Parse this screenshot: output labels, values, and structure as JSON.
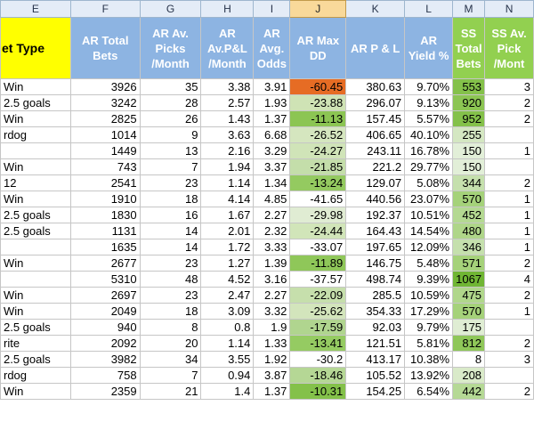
{
  "column_letters": [
    "E",
    "F",
    "G",
    "H",
    "I",
    "J",
    "K",
    "L",
    "M",
    "N"
  ],
  "headers": {
    "E": "et Type",
    "F": "AR Total Bets",
    "G": "AR Av. Picks /Month",
    "H": "AR Av.P&L /Month",
    "I": "AR Avg. Odds",
    "J": "AR Max DD",
    "K": "AR P & L",
    "L": "AR Yield %",
    "M": "SS Total Bets",
    "N": "SS Av. Pick /Mont"
  },
  "rows": [
    {
      "e": "Win",
      "f": "3926",
      "g": "35",
      "h": "3.38",
      "i": "3.91",
      "j": "-60.45",
      "k": "380.63",
      "l": "9.70%",
      "m": "553",
      "n": "3",
      "j_color": "#e66c24",
      "m_color": "#84c14a"
    },
    {
      "e": "2.5 goals",
      "f": "3242",
      "g": "28",
      "h": "2.57",
      "i": "1.93",
      "j": "-23.88",
      "k": "296.07",
      "l": "9.13%",
      "m": "920",
      "n": "2",
      "j_color": "#cfe3b5",
      "m_color": "#8cc553"
    },
    {
      "e": "Win",
      "f": "2825",
      "g": "26",
      "h": "1.43",
      "i": "1.37",
      "j": "-11.13",
      "k": "157.45",
      "l": "5.57%",
      "m": "952",
      "n": "2",
      "j_color": "#8cc553",
      "m_color": "#84c14a"
    },
    {
      "e": "rdog",
      "f": "1014",
      "g": "9",
      "h": "3.63",
      "i": "6.68",
      "j": "-26.52",
      "k": "406.65",
      "l": "40.10%",
      "m": "255",
      "n": "",
      "j_color": "#d5e6bf",
      "m_color": "#d4e7c2"
    },
    {
      "e": "",
      "f": "1449",
      "g": "13",
      "h": "2.16",
      "i": "3.29",
      "j": "-24.27",
      "k": "243.11",
      "l": "16.78%",
      "m": "150",
      "n": "1",
      "j_color": "#d0e4b8",
      "m_color": "#e2efd8"
    },
    {
      "e": "Win",
      "f": "743",
      "g": "7",
      "h": "1.94",
      "i": "3.37",
      "j": "-21.85",
      "k": "221.2",
      "l": "29.77%",
      "m": "150",
      "n": "",
      "j_color": "#c4deaa",
      "m_color": "#e2efd8"
    },
    {
      "e": "12",
      "f": "2541",
      "g": "23",
      "h": "1.14",
      "i": "1.34",
      "j": "-13.24",
      "k": "129.07",
      "l": "5.08%",
      "m": "344",
      "n": "2",
      "j_color": "#94ca60",
      "m_color": "#c5e0ad"
    },
    {
      "e": "Win",
      "f": "1910",
      "g": "18",
      "h": "4.14",
      "i": "4.85",
      "j": "-41.65",
      "k": "440.56",
      "l": "23.07%",
      "m": "570",
      "n": "1",
      "j_color": "#ffffff",
      "m_color": "#a5d27a"
    },
    {
      "e": "2.5 goals",
      "f": "1830",
      "g": "16",
      "h": "1.67",
      "i": "2.27",
      "j": "-29.98",
      "k": "192.37",
      "l": "10.51%",
      "m": "452",
      "n": "1",
      "j_color": "#e0ecd3",
      "m_color": "#b4d992"
    },
    {
      "e": "2.5 goals",
      "f": "1131",
      "g": "14",
      "h": "2.01",
      "i": "2.32",
      "j": "-24.44",
      "k": "164.43",
      "l": "14.54%",
      "m": "480",
      "n": "1",
      "j_color": "#d1e5b9",
      "m_color": "#afd689"
    },
    {
      "e": "",
      "f": "1635",
      "g": "14",
      "h": "1.72",
      "i": "3.33",
      "j": "-33.07",
      "k": "197.65",
      "l": "12.09%",
      "m": "346",
      "n": "1",
      "j_color": "#ffffff",
      "m_color": "#c5e0ad"
    },
    {
      "e": "Win",
      "f": "2677",
      "g": "23",
      "h": "1.27",
      "i": "1.39",
      "j": "-11.89",
      "k": "146.75",
      "l": "5.48%",
      "m": "571",
      "n": "2",
      "j_color": "#8fc759",
      "m_color": "#a5d27a"
    },
    {
      "e": "",
      "f": "5310",
      "g": "48",
      "h": "4.52",
      "i": "3.16",
      "j": "-37.57",
      "k": "498.74",
      "l": "9.39%",
      "m": "1067",
      "n": "4",
      "j_color": "#ffffff",
      "m_color": "#70b634"
    },
    {
      "e": "Win",
      "f": "2697",
      "g": "23",
      "h": "2.47",
      "i": "2.27",
      "j": "-22.09",
      "k": "285.5",
      "l": "10.59%",
      "m": "475",
      "n": "2",
      "j_color": "#c6dfac",
      "m_color": "#b0d78b"
    },
    {
      "e": "Win",
      "f": "2049",
      "g": "18",
      "h": "3.09",
      "i": "3.32",
      "j": "-25.62",
      "k": "354.33",
      "l": "17.29%",
      "m": "570",
      "n": "1",
      "j_color": "#d3e5bc",
      "m_color": "#a5d27a"
    },
    {
      "e": "2.5 goals",
      "f": "940",
      "g": "8",
      "h": "0.8",
      "i": "1.9",
      "j": "-17.59",
      "k": "92.03",
      "l": "9.79%",
      "m": "175",
      "n": "",
      "j_color": "#b0d58f",
      "m_color": "#dfedd3"
    },
    {
      "e": "rite",
      "f": "2092",
      "g": "20",
      "h": "1.14",
      "i": "1.33",
      "j": "-13.41",
      "k": "121.51",
      "l": "5.81%",
      "m": "812",
      "n": "2",
      "j_color": "#95cb62",
      "m_color": "#8fc759"
    },
    {
      "e": "2.5 goals",
      "f": "3982",
      "g": "34",
      "h": "3.55",
      "i": "1.92",
      "j": "-30.2",
      "k": "413.17",
      "l": "10.38%",
      "m": "8",
      "n": "3",
      "j_color": "#ffffff",
      "m_color": "#ffffff"
    },
    {
      "e": "rdog",
      "f": "758",
      "g": "7",
      "h": "0.94",
      "i": "3.87",
      "j": "-18.46",
      "k": "105.52",
      "l": "13.92%",
      "m": "208",
      "n": "",
      "j_color": "#b5d795",
      "m_color": "#d9eac9"
    },
    {
      "e": "Win",
      "f": "2359",
      "g": "21",
      "h": "1.4",
      "i": "1.37",
      "j": "-10.31",
      "k": "154.25",
      "l": "6.54%",
      "m": "442",
      "n": "2",
      "j_color": "#84c14a",
      "m_color": "#b5d995"
    }
  ]
}
